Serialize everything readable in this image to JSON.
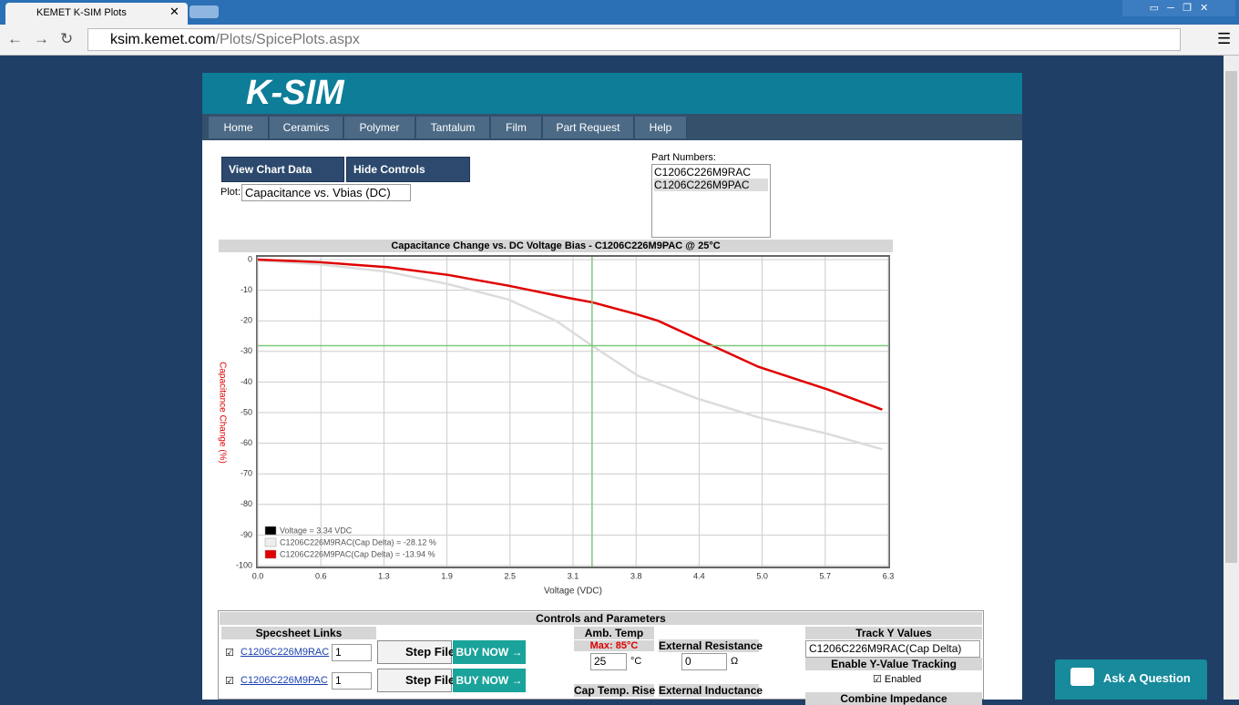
{
  "browser": {
    "tab_title": "KEMET K-SIM Plots",
    "url_host": "ksim.kemet.com",
    "url_path": "/Plots/SpicePlots.aspx"
  },
  "logo": "K-SIM",
  "nav": [
    "Home",
    "Ceramics",
    "Polymer",
    "Tantalum",
    "Film",
    "Part Request",
    "Help"
  ],
  "controls": {
    "view_chart_data": "View Chart Data",
    "hide_controls": "Hide Controls",
    "plot_label": "Plot:",
    "plot_value": "Capacitance vs. Vbias (DC)",
    "part_numbers_label": "Part Numbers:",
    "part_numbers": [
      "C1206C226M9RAC",
      "C1206C226M9PAC"
    ]
  },
  "chart_data": {
    "type": "line",
    "title": "Capacitance Change vs. DC Voltage Bias - C1206C226M9PAC @ 25°C",
    "x_label": "Voltage (VDC)",
    "y_label": "Capacitance Change (%)",
    "xlim": [
      0,
      6.3
    ],
    "ylim": [
      -100,
      0
    ],
    "xticks": [
      {
        "value": 0,
        "label": "0.0"
      },
      {
        "value": 0.63,
        "label": "0.6"
      },
      {
        "value": 1.26,
        "label": "1.3"
      },
      {
        "value": 1.89,
        "label": "1.9"
      },
      {
        "value": 2.52,
        "label": "2.5"
      },
      {
        "value": 3.15,
        "label": "3.1"
      },
      {
        "value": 3.78,
        "label": "3.8"
      },
      {
        "value": 4.41,
        "label": "4.4"
      },
      {
        "value": 5.04,
        "label": "5.0"
      },
      {
        "value": 5.67,
        "label": "5.7"
      },
      6.3
    ],
    "yticks": [
      0,
      -10,
      -20,
      -30,
      -40,
      -50,
      -60,
      -70,
      -80,
      -90,
      -100
    ],
    "grid": true,
    "series": [
      {
        "name": "C1206C226M9RAC",
        "color": "#dcdcdc",
        "x": [
          0,
          0.6,
          1.3,
          1.9,
          2.5,
          2.98,
          3.34,
          3.8,
          4.4,
          5.0,
          5.7,
          6.24
        ],
        "values": [
          -0.3,
          -1.5,
          -4,
          -8,
          -13,
          -20,
          -28.12,
          -38,
          -45.5,
          -51.5,
          -57,
          -62
        ]
      },
      {
        "name": "C1206C226M9PAC",
        "color": "#e00000",
        "x": [
          0,
          0.6,
          1.3,
          1.9,
          2.5,
          3.1,
          3.34,
          3.8,
          4.0,
          4.4,
          5.0,
          5.7,
          6.24
        ],
        "values": [
          0,
          -0.8,
          -2.5,
          -5,
          -8.5,
          -12.5,
          -13.94,
          -18,
          -20,
          -26,
          -35,
          -42.5,
          -49
        ]
      }
    ],
    "cursor_x": 3.34,
    "cursor_y": -28.12,
    "cursor_color": "#7cc97c",
    "legend_entries": [
      {
        "label": "Voltage = 3.34 VDC",
        "color": "#000000"
      },
      {
        "label": "C1206C226M9RAC(Cap Delta) = -28.12 %",
        "color": "#eeeeee"
      },
      {
        "label": "C1206C226M9PAC(Cap Delta) = -13.94 %",
        "color": "#e00000"
      }
    ]
  },
  "panel": {
    "title": "Controls and Parameters",
    "specsheet_header": "Specsheet Links",
    "rows": [
      {
        "part": "C1206C226M9RAC",
        "qty": "1",
        "step": "Step File",
        "buy": "BUY NOW →"
      },
      {
        "part": "C1206C226M9PAC",
        "qty": "1",
        "step": "Step File",
        "buy": "BUY NOW →"
      }
    ],
    "amb_temp": "Amb. Temp",
    "amb_max": "Max: 85°C",
    "amb_value": "25",
    "amb_unit": "°C",
    "ext_res": "External Resistance",
    "ext_res_value": "0",
    "ext_res_unit": "Ω",
    "cap_temp_rise": "Cap Temp. Rise",
    "ext_ind": "External Inductance",
    "track_y": "Track Y Values",
    "track_y_value": "C1206C226M9RAC(Cap Delta)",
    "enable_tracking": "Enable Y-Value Tracking",
    "enabled": "Enabled",
    "combine": "Combine Impedance"
  },
  "ask": "Ask A Question"
}
